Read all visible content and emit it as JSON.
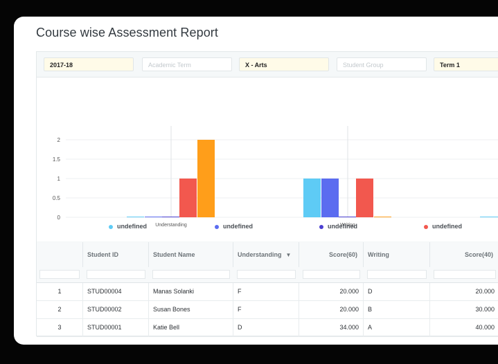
{
  "page": {
    "title": "Course wise Assessment Report"
  },
  "filters": [
    {
      "value": "2017-18",
      "placeholder": ""
    },
    {
      "value": "",
      "placeholder": "Academic Term"
    },
    {
      "value": "X - Arts",
      "placeholder": ""
    },
    {
      "value": "",
      "placeholder": "Student Group"
    },
    {
      "value": "Term 1",
      "placeholder": ""
    }
  ],
  "chart_data": {
    "type": "bar",
    "categories": [
      "Understanding",
      "Writing"
    ],
    "y_ticks": [
      "0",
      "0.5",
      "1",
      "1.5",
      "2"
    ],
    "ylim": [
      0,
      2
    ],
    "grid": true,
    "legend_placement": "bottom",
    "series": [
      {
        "name": "undefined",
        "color": "#5ecbf5",
        "values": [
          0,
          1
        ]
      },
      {
        "name": "undefined",
        "color": "#5b6cf0",
        "values": [
          0,
          1
        ]
      },
      {
        "name": "undefined",
        "color": "#4b3fd1",
        "values": [
          0,
          0
        ]
      },
      {
        "name": "undefined",
        "color": "#f2584e",
        "values": [
          1,
          1
        ]
      },
      {
        "name": "",
        "color": "#ff9e1a",
        "values": [
          2,
          0
        ]
      }
    ]
  },
  "table": {
    "columns": [
      "",
      "Student ID",
      "Student Name",
      "Understanding",
      "Score(60)",
      "Writing",
      "Score(40)"
    ],
    "rows": [
      [
        "1",
        "STUD00004",
        "Manas Solanki",
        "F",
        "20.000",
        "D",
        "20.000"
      ],
      [
        "2",
        "STUD00002",
        "Susan Bones",
        "F",
        "20.000",
        "B",
        "30.000"
      ],
      [
        "3",
        "STUD00001",
        "Katie Bell",
        "D",
        "34.000",
        "A",
        "40.000"
      ]
    ]
  },
  "icons": {
    "sort": "sort-down-icon",
    "cursor": "mouse-cursor-icon"
  }
}
